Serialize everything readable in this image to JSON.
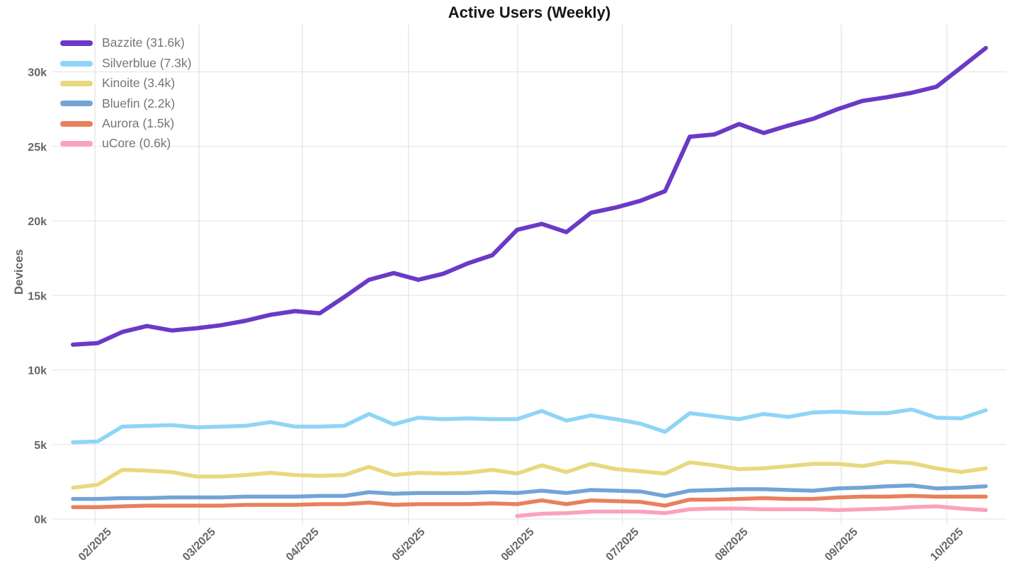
{
  "chart_data": {
    "type": "line",
    "title": "Active Users (Weekly)",
    "ylabel": "Devices",
    "x_unit": "week",
    "total_weeks": 38,
    "grid": true,
    "legend_position": "top-left",
    "ylim_thousands": [
      0,
      33.2
    ],
    "y_ticks": [
      {
        "label": "0k",
        "value": 0
      },
      {
        "label": "5k",
        "value": 5
      },
      {
        "label": "10k",
        "value": 10
      },
      {
        "label": "15k",
        "value": 15
      },
      {
        "label": "20k",
        "value": 20
      },
      {
        "label": "25k",
        "value": 25
      },
      {
        "label": "30k",
        "value": 30
      }
    ],
    "months": [
      {
        "label": "02/2025",
        "week_position": 0.89
      },
      {
        "label": "03/2025",
        "week_position": 5.11
      },
      {
        "label": "04/2025",
        "week_position": 9.3
      },
      {
        "label": "05/2025",
        "week_position": 13.6
      },
      {
        "label": "06/2025",
        "week_position": 18.02
      },
      {
        "label": "07/2025",
        "week_position": 22.27
      },
      {
        "label": "08/2025",
        "week_position": 26.69
      },
      {
        "label": "09/2025",
        "week_position": 31.14
      },
      {
        "label": "10/2025",
        "week_position": 35.42
      }
    ],
    "value_unit": "thousands of devices",
    "series": [
      {
        "name": "Bazzite",
        "legend_label": "Bazzite (31.6k)",
        "color": "#6a3ac6",
        "final_value": 31.6,
        "start_week": 0,
        "values": [
          11.7,
          11.8,
          12.55,
          12.95,
          12.65,
          12.8,
          13.0,
          13.3,
          13.7,
          13.95,
          13.8,
          14.9,
          16.05,
          16.5,
          16.05,
          16.45,
          17.15,
          17.7,
          19.4,
          19.8,
          19.25,
          20.55,
          20.9,
          21.35,
          22.0,
          25.65,
          25.8,
          26.5,
          25.9,
          26.4,
          26.85,
          27.5,
          28.05,
          28.3,
          28.6,
          29.0,
          30.3,
          31.6
        ]
      },
      {
        "name": "Silverblue",
        "legend_label": "Silverblue (7.3k)",
        "color": "#8fd5f7",
        "final_value": 7.3,
        "start_week": 0,
        "values": [
          5.15,
          5.2,
          6.2,
          6.25,
          6.3,
          6.15,
          6.2,
          6.25,
          6.5,
          6.2,
          6.2,
          6.25,
          7.05,
          6.35,
          6.8,
          6.7,
          6.75,
          6.7,
          6.7,
          7.25,
          6.6,
          6.95,
          6.7,
          6.4,
          5.85,
          7.1,
          6.9,
          6.7,
          7.05,
          6.85,
          7.15,
          7.2,
          7.1,
          7.1,
          7.35,
          6.8,
          6.75,
          7.3
        ]
      },
      {
        "name": "Kinoite",
        "legend_label": "Kinoite (3.4k)",
        "color": "#e9d87d",
        "final_value": 3.4,
        "start_week": 0,
        "values": [
          2.1,
          2.3,
          3.3,
          3.25,
          3.15,
          2.85,
          2.85,
          2.95,
          3.1,
          2.95,
          2.9,
          2.95,
          3.5,
          2.95,
          3.1,
          3.05,
          3.1,
          3.3,
          3.05,
          3.6,
          3.15,
          3.7,
          3.35,
          3.2,
          3.05,
          3.8,
          3.6,
          3.35,
          3.4,
          3.55,
          3.7,
          3.7,
          3.55,
          3.85,
          3.75,
          3.4,
          3.15,
          3.4
        ]
      },
      {
        "name": "Bluefin",
        "legend_label": "Bluefin (2.2k)",
        "color": "#72a4d6",
        "final_value": 2.2,
        "start_week": 0,
        "values": [
          1.35,
          1.35,
          1.4,
          1.4,
          1.45,
          1.45,
          1.45,
          1.5,
          1.5,
          1.5,
          1.55,
          1.55,
          1.8,
          1.7,
          1.75,
          1.75,
          1.75,
          1.8,
          1.75,
          1.9,
          1.75,
          1.95,
          1.9,
          1.85,
          1.55,
          1.9,
          1.95,
          2.0,
          2.0,
          1.95,
          1.9,
          2.05,
          2.1,
          2.2,
          2.25,
          2.05,
          2.1,
          2.2
        ]
      },
      {
        "name": "Aurora",
        "legend_label": "Aurora (1.5k)",
        "color": "#e8805c",
        "final_value": 1.5,
        "start_week": 0,
        "values": [
          0.8,
          0.8,
          0.85,
          0.9,
          0.9,
          0.9,
          0.9,
          0.95,
          0.95,
          0.95,
          1.0,
          1.0,
          1.1,
          0.95,
          1.0,
          1.0,
          1.0,
          1.05,
          1.0,
          1.25,
          1.0,
          1.25,
          1.2,
          1.15,
          0.9,
          1.3,
          1.3,
          1.35,
          1.4,
          1.35,
          1.35,
          1.45,
          1.5,
          1.5,
          1.55,
          1.5,
          1.5,
          1.5
        ]
      },
      {
        "name": "uCore",
        "legend_label": "uCore (0.6k)",
        "color": "#f9a3ba",
        "final_value": 0.6,
        "start_week": 18,
        "values": [
          0.2,
          0.35,
          0.4,
          0.5,
          0.5,
          0.5,
          0.4,
          0.65,
          0.7,
          0.7,
          0.65,
          0.65,
          0.65,
          0.6,
          0.65,
          0.7,
          0.8,
          0.85,
          0.7,
          0.6
        ]
      }
    ]
  }
}
